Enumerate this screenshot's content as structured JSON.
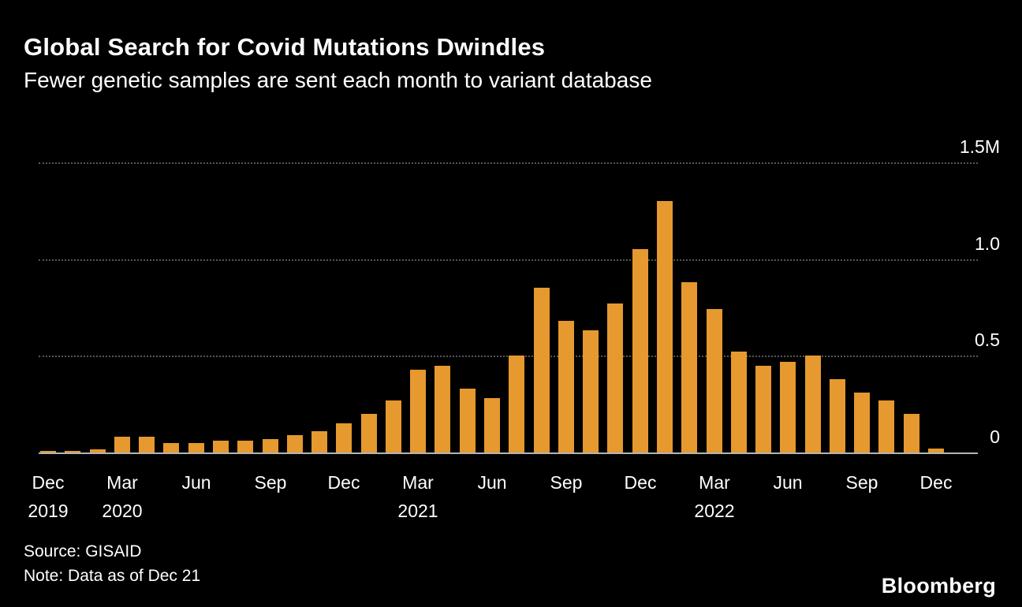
{
  "header": {
    "title": "Global Search for Covid Mutations Dwindles",
    "subtitle": "Fewer genetic samples are sent each month to variant database"
  },
  "footer": {
    "source": "Source: GISAID",
    "note": "Note: Data as of Dec 21",
    "brand": "Bloomberg"
  },
  "colors": {
    "background": "#000000",
    "bar": "#E5992E",
    "gridline": "#565656",
    "axis_line": "#B5B5B5",
    "text": "#FFFFFF"
  },
  "chart_data": {
    "type": "bar",
    "title": "Global Search for Covid Mutations Dwindles",
    "subtitle": "Fewer genetic samples are sent each month to variant database",
    "unit": "genetic samples submitted per month, millions",
    "categories": [
      "Dec 2019",
      "Jan 2020",
      "Feb 2020",
      "Mar 2020",
      "Apr 2020",
      "May 2020",
      "Jun 2020",
      "Jul 2020",
      "Aug 2020",
      "Sep 2020",
      "Oct 2020",
      "Nov 2020",
      "Dec 2020",
      "Jan 2021",
      "Feb 2021",
      "Mar 2021",
      "Apr 2021",
      "May 2021",
      "Jun 2021",
      "Jul 2021",
      "Aug 2021",
      "Sep 2021",
      "Oct 2021",
      "Nov 2021",
      "Dec 2021",
      "Jan 2022",
      "Feb 2022",
      "Mar 2022",
      "Apr 2022",
      "May 2022",
      "Jun 2022",
      "Jul 2022",
      "Aug 2022",
      "Sep 2022",
      "Oct 2022",
      "Nov 2022",
      "Dec 2022"
    ],
    "values": [
      0.01,
      0.01,
      0.015,
      0.08,
      0.08,
      0.05,
      0.05,
      0.06,
      0.06,
      0.07,
      0.09,
      0.11,
      0.15,
      0.2,
      0.27,
      0.43,
      0.45,
      0.33,
      0.28,
      0.5,
      0.85,
      0.68,
      0.63,
      0.77,
      1.05,
      1.3,
      0.88,
      0.74,
      0.52,
      0.45,
      0.47,
      0.5,
      0.38,
      0.31,
      0.27,
      0.2,
      0.02
    ],
    "ylim": [
      0,
      1.5
    ],
    "y_ticks": [
      {
        "value": 0,
        "label": "0"
      },
      {
        "value": 0.5,
        "label": "0.5"
      },
      {
        "value": 1.0,
        "label": "1.0"
      },
      {
        "value": 1.5,
        "label": "1.5M"
      }
    ],
    "x_ticks": [
      {
        "index": 0,
        "month": "Dec",
        "year": "2019"
      },
      {
        "index": 3,
        "month": "Mar",
        "year": "2020"
      },
      {
        "index": 6,
        "month": "Jun"
      },
      {
        "index": 9,
        "month": "Sep"
      },
      {
        "index": 12,
        "month": "Dec"
      },
      {
        "index": 15,
        "month": "Mar",
        "year": "2021"
      },
      {
        "index": 18,
        "month": "Jun"
      },
      {
        "index": 21,
        "month": "Sep"
      },
      {
        "index": 24,
        "month": "Dec"
      },
      {
        "index": 27,
        "month": "Mar",
        "year": "2022"
      },
      {
        "index": 30,
        "month": "Jun"
      },
      {
        "index": 33,
        "month": "Sep"
      },
      {
        "index": 36,
        "month": "Dec"
      }
    ],
    "grid": "horizontal dotted",
    "legend": "none"
  }
}
